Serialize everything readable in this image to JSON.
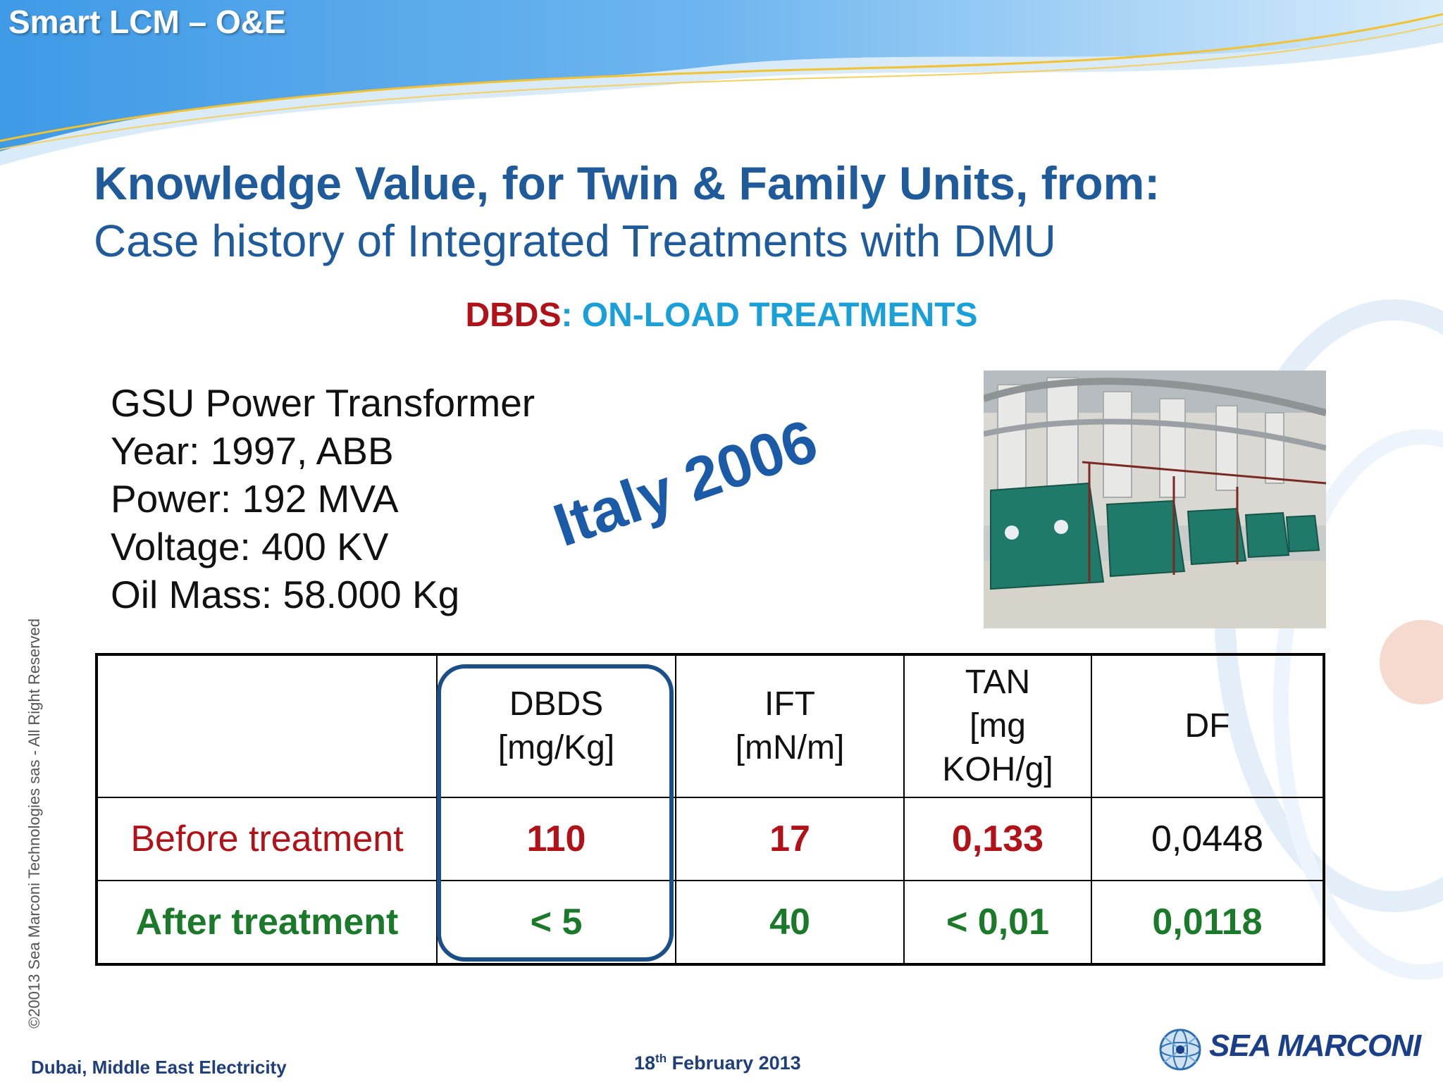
{
  "header": {
    "title": "Smart LCM – O&E"
  },
  "slide": {
    "title": "Knowledge Value, for Twin & Family Units, from:",
    "subtitle": "Case history of Integrated Treatments with DMU",
    "section_red": "DBDS",
    "section_blue": ": ON-LOAD TREATMENTS"
  },
  "specs": [
    "GSU Power Transformer",
    "Year: 1997, ABB",
    "Power: 192 MVA",
    "Voltage: 400 KV",
    "Oil Mass: 58.000 Kg"
  ],
  "stamp": "Italy 2006",
  "table": {
    "headers": [
      "",
      "DBDS\n[mg/Kg]",
      "IFT\n[mN/m]",
      "TAN\n[mg\nKOH/g]",
      "DF"
    ],
    "rows": [
      {
        "label": "Before treatment",
        "values": [
          "110",
          "17",
          "0,133",
          "0,0448"
        ]
      },
      {
        "label": "After treatment",
        "values": [
          "< 5",
          "40",
          "< 0,01",
          "0,0118"
        ]
      }
    ]
  },
  "copyright": "©20013  Sea Marconi Technologies sas -   All Right Reserved",
  "footer": {
    "location": "Dubai, Middle East Electricity",
    "date_day": "18",
    "date_suffix": "th",
    "date_rest": " February 2013",
    "logo_text": "SEA MARCONI"
  },
  "colors": {
    "title_blue": "#1f5a9a",
    "red": "#b01218",
    "green": "#1a7a2a",
    "cyan": "#1aa0d8"
  }
}
